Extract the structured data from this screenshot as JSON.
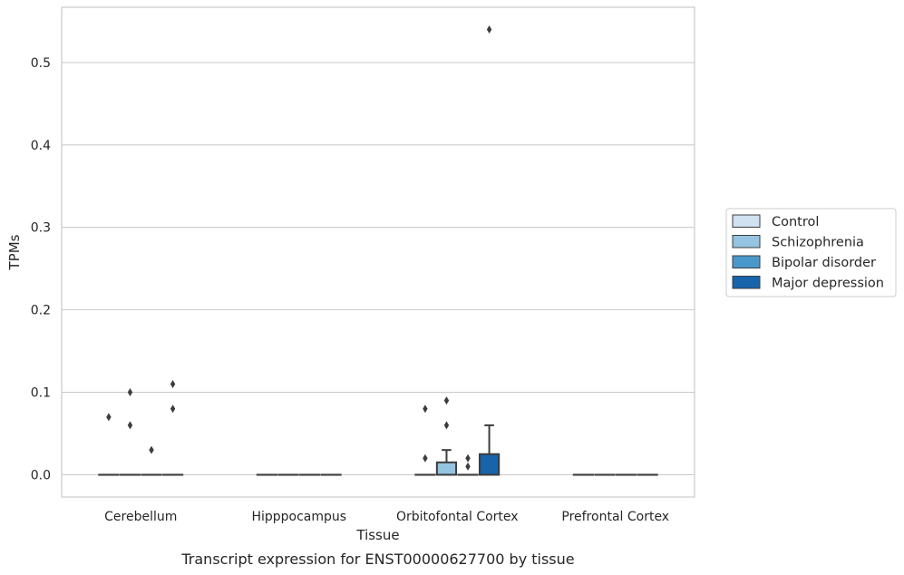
{
  "chart_data": {
    "type": "box",
    "xlabel": "Tissue",
    "ylabel": "TPMs",
    "caption": "Transcript expression for ENST00000627700 by tissue",
    "ylim": [
      -0.027,
      0.567
    ],
    "yticks": [
      0.0,
      0.1,
      0.2,
      0.3,
      0.4,
      0.5
    ],
    "ytick_labels": [
      "0.0",
      "0.1",
      "0.2",
      "0.3",
      "0.4",
      "0.5"
    ],
    "grid": "horizontal",
    "legend_position": "right",
    "categories": [
      "Cerebellum",
      "Hipppocampus",
      "Orbitofontal Cortex",
      "Prefrontal Cortex"
    ],
    "series": [
      {
        "name": "Control",
        "color": "#d0e1f2",
        "boxes": [
          {
            "category": "Cerebellum",
            "q1": 0,
            "median": 0,
            "q3": 0,
            "whisker_low": 0,
            "whisker_high": 0,
            "outliers": [
              0.07
            ]
          },
          {
            "category": "Hipppocampus",
            "q1": 0,
            "median": 0,
            "q3": 0,
            "whisker_low": 0,
            "whisker_high": 0,
            "outliers": []
          },
          {
            "category": "Orbitofontal Cortex",
            "q1": 0,
            "median": 0,
            "q3": 0,
            "whisker_low": 0,
            "whisker_high": 0,
            "outliers": [
              0.08,
              0.02
            ]
          },
          {
            "category": "Prefrontal Cortex",
            "q1": 0,
            "median": 0,
            "q3": 0,
            "whisker_low": 0,
            "whisker_high": 0,
            "outliers": []
          }
        ]
      },
      {
        "name": "Schizophrenia",
        "color": "#94c4df",
        "boxes": [
          {
            "category": "Cerebellum",
            "q1": 0,
            "median": 0,
            "q3": 0,
            "whisker_low": 0,
            "whisker_high": 0,
            "outliers": [
              0.1,
              0.06
            ]
          },
          {
            "category": "Hipppocampus",
            "q1": 0,
            "median": 0,
            "q3": 0,
            "whisker_low": 0,
            "whisker_high": 0,
            "outliers": []
          },
          {
            "category": "Orbitofontal Cortex",
            "q1": 0,
            "median": 0,
            "q3": 0.015,
            "whisker_low": 0,
            "whisker_high": 0.03,
            "outliers": [
              0.09,
              0.06
            ]
          },
          {
            "category": "Prefrontal Cortex",
            "q1": 0,
            "median": 0,
            "q3": 0,
            "whisker_low": 0,
            "whisker_high": 0,
            "outliers": []
          }
        ]
      },
      {
        "name": "Bipolar disorder",
        "color": "#4a98c9",
        "boxes": [
          {
            "category": "Cerebellum",
            "q1": 0,
            "median": 0,
            "q3": 0,
            "whisker_low": 0,
            "whisker_high": 0,
            "outliers": [
              0.03
            ]
          },
          {
            "category": "Hipppocampus",
            "q1": 0,
            "median": 0,
            "q3": 0,
            "whisker_low": 0,
            "whisker_high": 0,
            "outliers": []
          },
          {
            "category": "Orbitofontal Cortex",
            "q1": 0,
            "median": 0,
            "q3": 0,
            "whisker_low": 0,
            "whisker_high": 0,
            "outliers": [
              0.02,
              0.01
            ]
          },
          {
            "category": "Prefrontal Cortex",
            "q1": 0,
            "median": 0,
            "q3": 0,
            "whisker_low": 0,
            "whisker_high": 0,
            "outliers": []
          }
        ]
      },
      {
        "name": "Major depression",
        "color": "#1764ab",
        "boxes": [
          {
            "category": "Cerebellum",
            "q1": 0,
            "median": 0,
            "q3": 0,
            "whisker_low": 0,
            "whisker_high": 0,
            "outliers": [
              0.11,
              0.08
            ]
          },
          {
            "category": "Hipppocampus",
            "q1": 0,
            "median": 0,
            "q3": 0,
            "whisker_low": 0,
            "whisker_high": 0,
            "outliers": []
          },
          {
            "category": "Orbitofontal Cortex",
            "q1": 0,
            "median": 0,
            "q3": 0.025,
            "whisker_low": 0,
            "whisker_high": 0.06,
            "outliers": [
              0.54
            ]
          },
          {
            "category": "Prefrontal Cortex",
            "q1": 0,
            "median": 0,
            "q3": 0,
            "whisker_low": 0,
            "whisker_high": 0,
            "outliers": []
          }
        ]
      }
    ]
  }
}
